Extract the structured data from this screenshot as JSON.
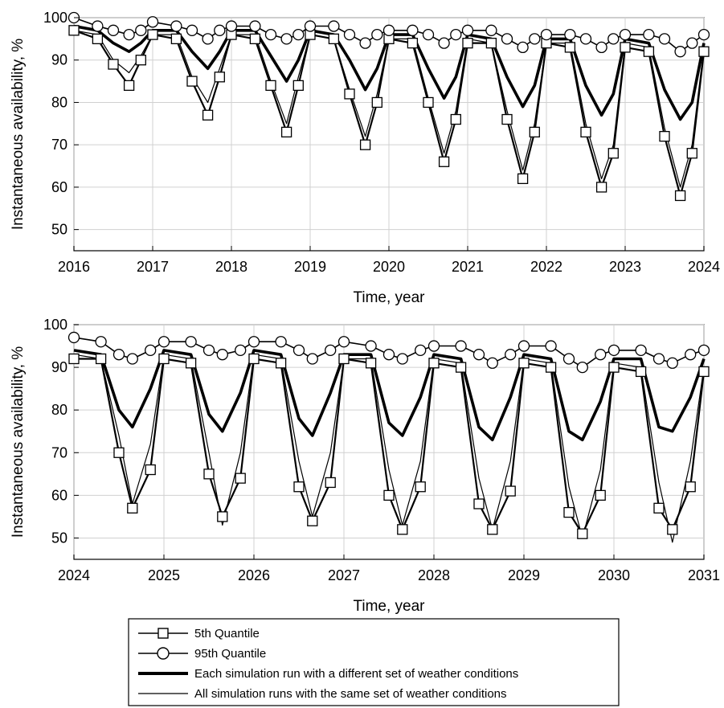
{
  "chart_data": [
    {
      "type": "line",
      "xlabel": "Time, year",
      "ylabel": "Instantaneous availability, %",
      "xlim": [
        2016,
        2024
      ],
      "ylim": [
        45,
        100
      ],
      "xticks": [
        "2016",
        "2017",
        "2018",
        "2019",
        "2020",
        "2021",
        "2022",
        "2023",
        "2024"
      ],
      "yticks": [
        "50",
        "60",
        "70",
        "80",
        "90",
        "100"
      ],
      "grid": true,
      "series": [
        {
          "name": "5th Quantile",
          "marker": "square",
          "x": [
            2016.0,
            2016.3,
            2016.5,
            2016.7,
            2016.85,
            2017.0,
            2017.3,
            2017.5,
            2017.7,
            2017.85,
            2018.0,
            2018.3,
            2018.5,
            2018.7,
            2018.85,
            2019.0,
            2019.3,
            2019.5,
            2019.7,
            2019.85,
            2020.0,
            2020.3,
            2020.5,
            2020.7,
            2020.85,
            2021.0,
            2021.3,
            2021.5,
            2021.7,
            2021.85,
            2022.0,
            2022.3,
            2022.5,
            2022.7,
            2022.85,
            2023.0,
            2023.3,
            2023.5,
            2023.7,
            2023.85,
            2024.0
          ],
          "y": [
            97,
            95,
            89,
            84,
            90,
            96,
            95,
            85,
            77,
            86,
            96,
            95,
            84,
            73,
            84,
            96,
            95,
            82,
            70,
            80,
            95,
            94,
            80,
            66,
            76,
            94,
            94,
            76,
            62,
            73,
            94,
            93,
            73,
            60,
            68,
            93,
            92,
            72,
            58,
            68,
            92
          ]
        },
        {
          "name": "95th Quantile",
          "marker": "circle",
          "x": [
            2016.0,
            2016.3,
            2016.5,
            2016.7,
            2016.85,
            2017.0,
            2017.3,
            2017.5,
            2017.7,
            2017.85,
            2018.0,
            2018.3,
            2018.5,
            2018.7,
            2018.85,
            2019.0,
            2019.3,
            2019.5,
            2019.7,
            2019.85,
            2020.0,
            2020.3,
            2020.5,
            2020.7,
            2020.85,
            2021.0,
            2021.3,
            2021.5,
            2021.7,
            2021.85,
            2022.0,
            2022.3,
            2022.5,
            2022.7,
            2022.85,
            2023.0,
            2023.3,
            2023.5,
            2023.7,
            2023.85,
            2024.0
          ],
          "y": [
            100,
            98,
            97,
            96,
            97,
            99,
            98,
            97,
            95,
            97,
            98,
            98,
            96,
            95,
            96,
            98,
            98,
            96,
            94,
            96,
            97,
            97,
            96,
            94,
            96,
            97,
            97,
            95,
            93,
            95,
            96,
            96,
            95,
            93,
            95,
            96,
            96,
            95,
            92,
            94,
            96
          ]
        },
        {
          "name": "Each simulation run with a different set of weather conditions",
          "marker": "none",
          "x": [
            2016.0,
            2016.3,
            2016.5,
            2016.7,
            2016.85,
            2017.0,
            2017.3,
            2017.5,
            2017.7,
            2017.85,
            2018.0,
            2018.3,
            2018.5,
            2018.7,
            2018.85,
            2019.0,
            2019.3,
            2019.5,
            2019.7,
            2019.85,
            2020.0,
            2020.3,
            2020.5,
            2020.7,
            2020.85,
            2021.0,
            2021.3,
            2021.5,
            2021.7,
            2021.85,
            2022.0,
            2022.3,
            2022.5,
            2022.7,
            2022.85,
            2023.0,
            2023.3,
            2023.5,
            2023.7,
            2023.85,
            2024.0
          ],
          "y": [
            98,
            97,
            94,
            92,
            94,
            97,
            97,
            92,
            88,
            92,
            97,
            97,
            91,
            85,
            90,
            97,
            96,
            90,
            83,
            88,
            96,
            96,
            88,
            81,
            86,
            96,
            95,
            86,
            79,
            84,
            95,
            95,
            84,
            77,
            82,
            95,
            94,
            83,
            76,
            80,
            94
          ]
        },
        {
          "name": "All simulation runs with the same set of weather conditions",
          "marker": "none",
          "x": [
            2016.0,
            2016.3,
            2016.5,
            2016.7,
            2016.85,
            2017.0,
            2017.3,
            2017.5,
            2017.7,
            2017.85,
            2018.0,
            2018.3,
            2018.5,
            2018.7,
            2018.85,
            2019.0,
            2019.3,
            2019.5,
            2019.7,
            2019.85,
            2020.0,
            2020.3,
            2020.5,
            2020.7,
            2020.85,
            2021.0,
            2021.3,
            2021.5,
            2021.7,
            2021.85,
            2022.0,
            2022.3,
            2022.5,
            2022.7,
            2022.85,
            2023.0,
            2023.3,
            2023.5,
            2023.7,
            2023.85,
            2024.0
          ],
          "y": [
            97,
            96,
            90,
            87,
            91,
            96,
            96,
            86,
            80,
            88,
            96,
            96,
            85,
            75,
            86,
            96,
            95,
            83,
            72,
            82,
            95,
            95,
            81,
            68,
            78,
            95,
            94,
            78,
            64,
            75,
            94,
            94,
            75,
            62,
            70,
            94,
            93,
            74,
            60,
            70,
            93
          ]
        }
      ]
    },
    {
      "type": "line",
      "xlabel": "Time, year",
      "ylabel": "Instantaneous availability, %",
      "xlim": [
        2024,
        2031
      ],
      "ylim": [
        45,
        100
      ],
      "xticks": [
        "2024",
        "2025",
        "2026",
        "2027",
        "2028",
        "2029",
        "2030",
        "2031"
      ],
      "yticks": [
        "50",
        "60",
        "70",
        "80",
        "90",
        "100"
      ],
      "grid": true,
      "series": [
        {
          "name": "5th Quantile",
          "marker": "square",
          "x": [
            2024.0,
            2024.3,
            2024.5,
            2024.65,
            2024.85,
            2025.0,
            2025.3,
            2025.5,
            2025.65,
            2025.85,
            2026.0,
            2026.3,
            2026.5,
            2026.65,
            2026.85,
            2027.0,
            2027.3,
            2027.5,
            2027.65,
            2027.85,
            2028.0,
            2028.3,
            2028.5,
            2028.65,
            2028.85,
            2029.0,
            2029.3,
            2029.5,
            2029.65,
            2029.85,
            2030.0,
            2030.3,
            2030.5,
            2030.65,
            2030.85,
            2031.0
          ],
          "y": [
            92,
            92,
            70,
            57,
            66,
            92,
            91,
            65,
            55,
            64,
            92,
            91,
            62,
            54,
            63,
            92,
            91,
            60,
            52,
            62,
            91,
            90,
            58,
            52,
            61,
            91,
            90,
            56,
            51,
            60,
            90,
            89,
            57,
            52,
            62,
            89
          ]
        },
        {
          "name": "95th Quantile",
          "marker": "circle",
          "x": [
            2024.0,
            2024.3,
            2024.5,
            2024.65,
            2024.85,
            2025.0,
            2025.3,
            2025.5,
            2025.65,
            2025.85,
            2026.0,
            2026.3,
            2026.5,
            2026.65,
            2026.85,
            2027.0,
            2027.3,
            2027.5,
            2027.65,
            2027.85,
            2028.0,
            2028.3,
            2028.5,
            2028.65,
            2028.85,
            2029.0,
            2029.3,
            2029.5,
            2029.65,
            2029.85,
            2030.0,
            2030.3,
            2030.5,
            2030.65,
            2030.85,
            2031.0
          ],
          "y": [
            97,
            96,
            93,
            92,
            94,
            96,
            96,
            94,
            93,
            94,
            96,
            96,
            94,
            92,
            94,
            96,
            95,
            93,
            92,
            94,
            95,
            95,
            93,
            91,
            93,
            95,
            95,
            92,
            90,
            93,
            94,
            94,
            92,
            91,
            93,
            94
          ]
        },
        {
          "name": "Each simulation run with a different set of weather conditions",
          "marker": "none",
          "x": [
            2024.0,
            2024.3,
            2024.5,
            2024.65,
            2024.85,
            2025.0,
            2025.3,
            2025.5,
            2025.65,
            2025.85,
            2026.0,
            2026.3,
            2026.5,
            2026.65,
            2026.85,
            2027.0,
            2027.3,
            2027.5,
            2027.65,
            2027.85,
            2028.0,
            2028.3,
            2028.5,
            2028.65,
            2028.85,
            2029.0,
            2029.3,
            2029.5,
            2029.65,
            2029.85,
            2030.0,
            2030.3,
            2030.5,
            2030.65,
            2030.85,
            2031.0
          ],
          "y": [
            94,
            93,
            80,
            76,
            85,
            94,
            93,
            79,
            75,
            84,
            94,
            93,
            78,
            74,
            84,
            93,
            93,
            77,
            74,
            83,
            93,
            92,
            76,
            73,
            83,
            93,
            92,
            75,
            73,
            82,
            92,
            92,
            76,
            75,
            83,
            92
          ]
        },
        {
          "name": "All simulation runs with the same set of weather conditions",
          "marker": "none",
          "x": [
            2024.0,
            2024.3,
            2024.5,
            2024.65,
            2024.85,
            2025.0,
            2025.3,
            2025.5,
            2025.65,
            2025.85,
            2026.0,
            2026.3,
            2026.5,
            2026.65,
            2026.85,
            2027.0,
            2027.3,
            2027.5,
            2027.65,
            2027.85,
            2028.0,
            2028.3,
            2028.5,
            2028.65,
            2028.85,
            2029.0,
            2029.3,
            2029.5,
            2029.65,
            2029.85,
            2030.0,
            2030.3,
            2030.5,
            2030.65,
            2030.85,
            2031.0
          ],
          "y": [
            93,
            92,
            74,
            58,
            72,
            93,
            92,
            70,
            53,
            70,
            93,
            92,
            68,
            55,
            70,
            92,
            92,
            66,
            53,
            68,
            92,
            91,
            64,
            52,
            68,
            92,
            91,
            62,
            50,
            66,
            91,
            90,
            63,
            49,
            68,
            90
          ]
        }
      ]
    }
  ],
  "legend": {
    "items": [
      {
        "label": "5th Quantile",
        "marker": "square"
      },
      {
        "label": "95th Quantile",
        "marker": "circle"
      },
      {
        "label": "Each simulation run with a different set of weather conditions",
        "marker": "thick-line"
      },
      {
        "label": "All simulation runs with the same set of weather conditions",
        "marker": "thin-line"
      }
    ]
  }
}
